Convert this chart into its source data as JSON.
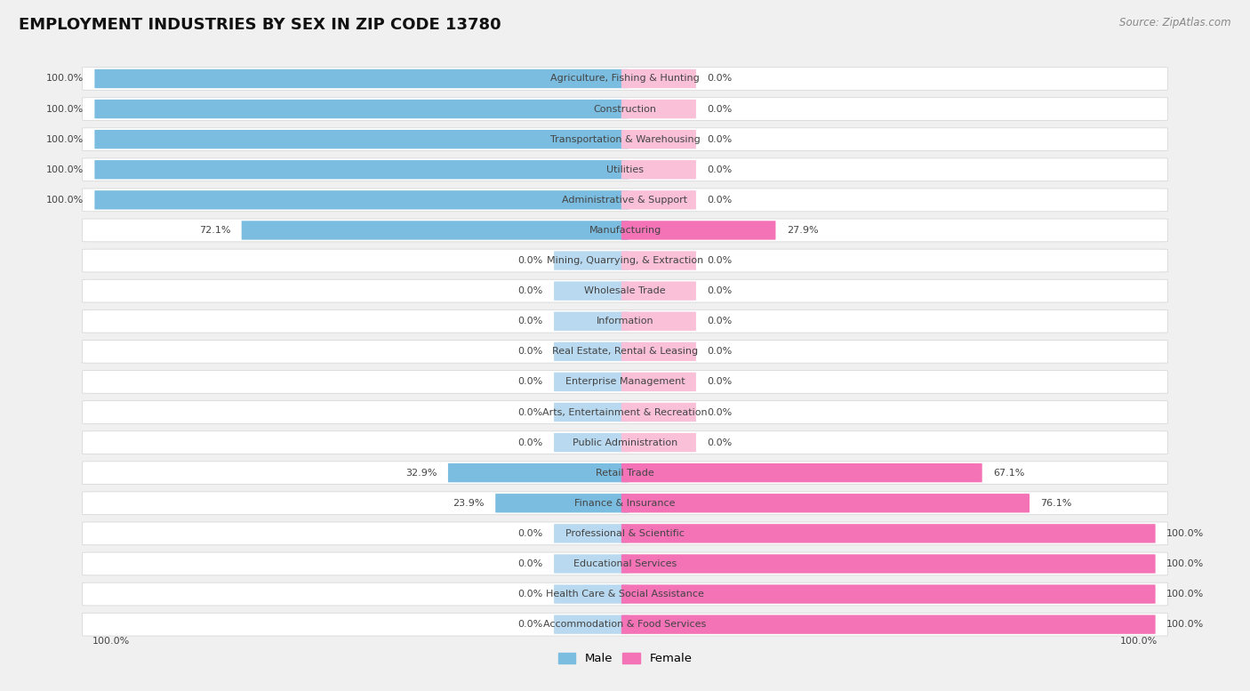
{
  "title": "EMPLOYMENT INDUSTRIES BY SEX IN ZIP CODE 13780",
  "source": "Source: ZipAtlas.com",
  "categories": [
    "Agriculture, Fishing & Hunting",
    "Construction",
    "Transportation & Warehousing",
    "Utilities",
    "Administrative & Support",
    "Manufacturing",
    "Mining, Quarrying, & Extraction",
    "Wholesale Trade",
    "Information",
    "Real Estate, Rental & Leasing",
    "Enterprise Management",
    "Arts, Entertainment & Recreation",
    "Public Administration",
    "Retail Trade",
    "Finance & Insurance",
    "Professional & Scientific",
    "Educational Services",
    "Health Care & Social Assistance",
    "Accommodation & Food Services"
  ],
  "male": [
    100.0,
    100.0,
    100.0,
    100.0,
    100.0,
    72.1,
    0.0,
    0.0,
    0.0,
    0.0,
    0.0,
    0.0,
    0.0,
    32.9,
    23.9,
    0.0,
    0.0,
    0.0,
    0.0
  ],
  "female": [
    0.0,
    0.0,
    0.0,
    0.0,
    0.0,
    27.9,
    0.0,
    0.0,
    0.0,
    0.0,
    0.0,
    0.0,
    0.0,
    67.1,
    76.1,
    100.0,
    100.0,
    100.0,
    100.0
  ],
  "male_color": "#7bbde0",
  "female_color": "#f472b6",
  "male_color_light": "#b8d9ef",
  "female_color_light": "#f9c0d8",
  "bg_color": "#f0f0f0",
  "row_bg": "#ffffff",
  "row_border": "#d8d8d8",
  "label_color": "#444444",
  "title_fontsize": 13,
  "source_fontsize": 8.5,
  "label_fontsize": 8,
  "pct_fontsize": 8
}
